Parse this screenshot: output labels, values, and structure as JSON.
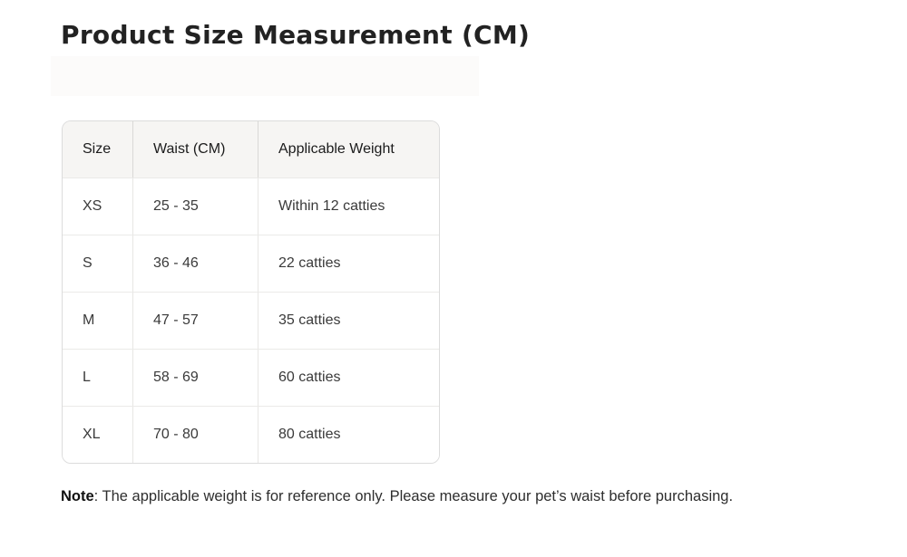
{
  "title": "Product Size Measurement (CM)",
  "chart_data": {
    "type": "table",
    "title": "Product Size Measurement (CM)",
    "columns": [
      "Size",
      "Waist (CM)",
      "Applicable Weight"
    ],
    "rows": [
      [
        "XS",
        "25 - 35",
        "Within 12 catties"
      ],
      [
        "S",
        "36 - 46",
        "22 catties"
      ],
      [
        "M",
        "47 - 57",
        "35 catties"
      ],
      [
        "L",
        "58 - 69",
        "60 catties"
      ],
      [
        "XL",
        "70 - 80",
        "80 catties"
      ]
    ],
    "note": "Note: The applicable weight is for reference only. Please measure your pet’s waist before purchasing."
  },
  "note": {
    "label": "Note",
    "text": ": The applicable weight is for reference only. Please measure your pet’s waist before purchasing."
  },
  "colors": {
    "header_bg": "#f6f5f3",
    "outer_border": "#dcdcdc",
    "row_divider": "#ebeae8",
    "column_divider": "#e7e6e4",
    "title_text": "#222222",
    "body_text": "#3a3a3a"
  }
}
